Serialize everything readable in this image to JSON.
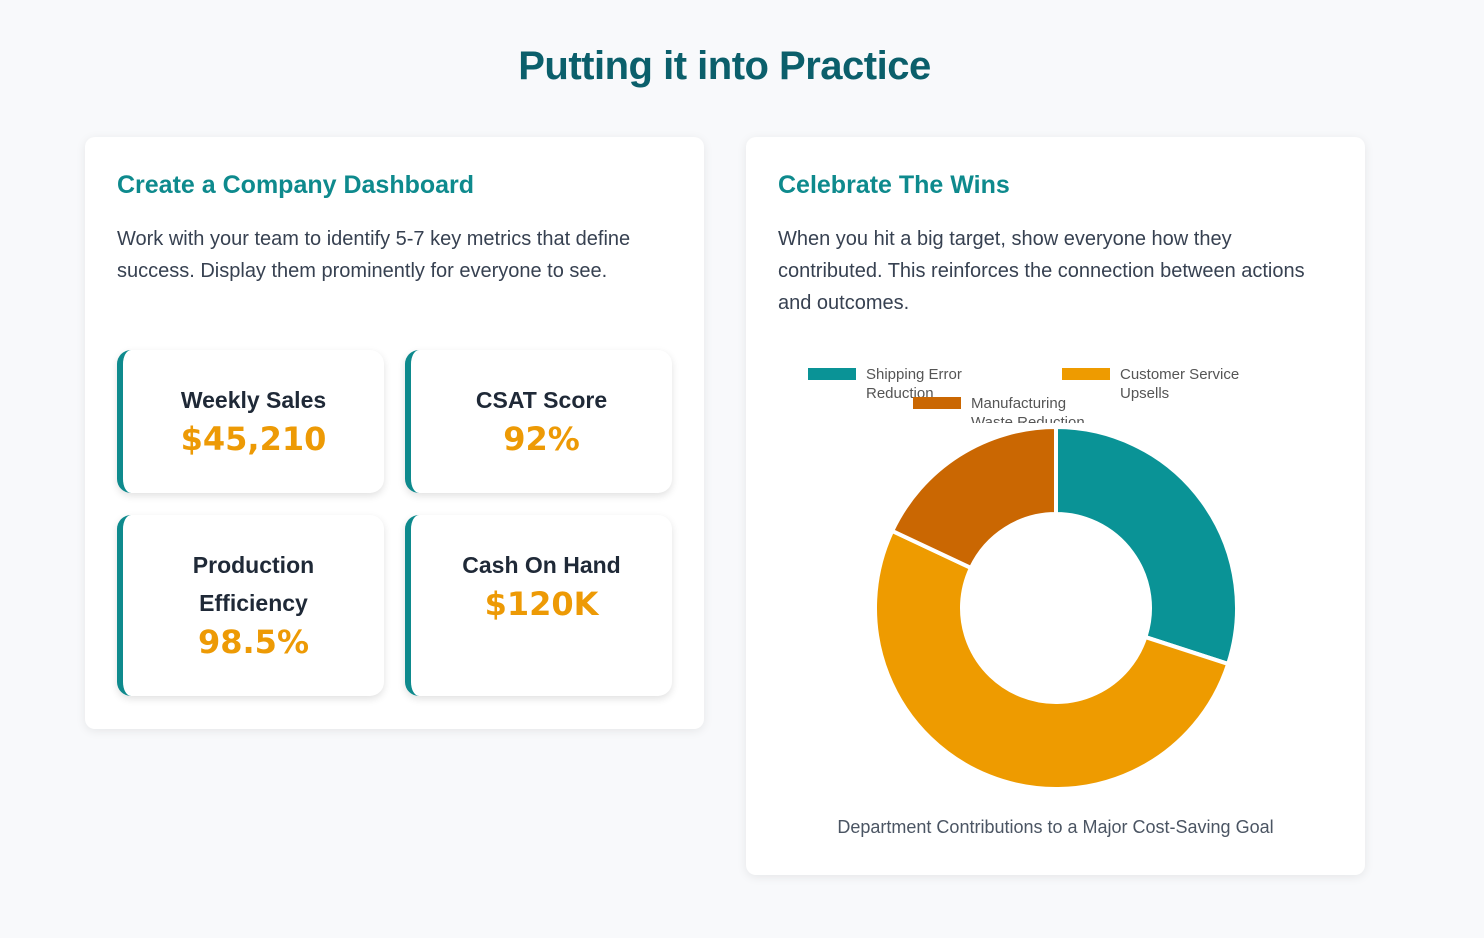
{
  "page": {
    "title": "Putting it into Practice"
  },
  "left_card": {
    "title": "Create a Company Dashboard",
    "description": "Work with your team to identify 5-7 key metrics that define success. Display them prominently for everyone to see.",
    "metrics": [
      {
        "label": "Weekly Sales",
        "value": "$45,210"
      },
      {
        "label": "CSAT Score",
        "value": "92%"
      },
      {
        "label": "Production Efficiency",
        "value": "98.5%"
      },
      {
        "label": "Cash On Hand",
        "value": "$120K"
      }
    ]
  },
  "right_card": {
    "title": "Celebrate The Wins",
    "description": "When you hit a big target, show everyone how they contributed. This reinforces the connection between actions and outcomes.",
    "caption": "Department Contributions to a Major Cost-Saving Goal"
  },
  "chart_data": {
    "type": "pie",
    "variant": "doughnut",
    "categories": [
      "Shipping Error Reduction",
      "Customer Service Upsells",
      "Manufacturing Waste Reduction"
    ],
    "values": [
      30,
      52,
      18
    ],
    "colors": [
      "#0a9396",
      "#ee9b00",
      "#ca6702"
    ],
    "legend_position": "top",
    "title": ""
  }
}
